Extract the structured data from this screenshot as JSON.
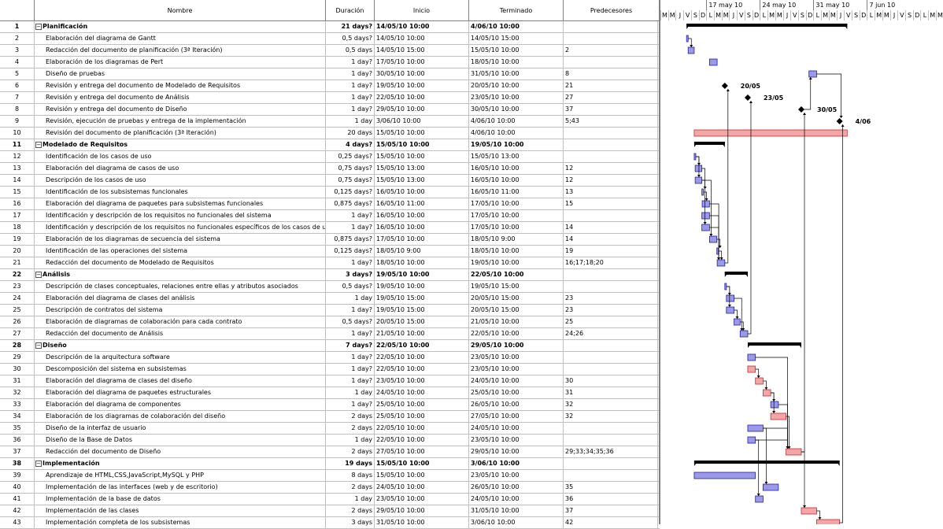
{
  "columns": {
    "id": "",
    "name": "Nombre",
    "duration": "Duración",
    "start": "Inicio",
    "end": "Terminado",
    "pred": "Predecesores"
  },
  "timescale": {
    "weeks": [
      "17 may 10",
      "24 may 10",
      "31 may 10",
      "7 jun 10"
    ],
    "days": [
      "M",
      "M",
      "J",
      "V",
      "S",
      "D",
      "L",
      "M",
      "M",
      "J",
      "V",
      "S",
      "D",
      "L",
      "M",
      "M",
      "J",
      "V",
      "S",
      "D",
      "L",
      "M",
      "M",
      "J",
      "V",
      "S",
      "D",
      "L",
      "M",
      "M",
      "J",
      "V",
      "S",
      "D",
      "L",
      "M",
      "M"
    ]
  },
  "colors": {
    "normal_bar": "#9a9ae8",
    "critical_bar": "#f4a6a6",
    "summary_bar": "#000000",
    "link": "#000000"
  },
  "rows": [
    {
      "id": "1",
      "name": "Planificación",
      "dur": "21 days?",
      "start": "14/05/10 10:00",
      "end": "4/06/10 10:00",
      "pred": "",
      "summary": true,
      "toggle": "−"
    },
    {
      "id": "2",
      "name": "Elaboración del diagrama de Gantt",
      "dur": "0,5 days?",
      "start": "14/05/10 10:00",
      "end": "14/05/10 15:00",
      "pred": ""
    },
    {
      "id": "3",
      "name": "Redacción del documento de planificación (3ª Iteración)",
      "dur": "0,5 days",
      "start": "14/05/10 15:00",
      "end": "15/05/10 10:00",
      "pred": "2"
    },
    {
      "id": "4",
      "name": "Elaboración de los diagramas de Pert",
      "dur": "1 day?",
      "start": "17/05/10 10:00",
      "end": "18/05/10 10:00",
      "pred": ""
    },
    {
      "id": "5",
      "name": "Diseño de pruebas",
      "dur": "1 day?",
      "start": "30/05/10 10:00",
      "end": "31/05/10 10:00",
      "pred": "8"
    },
    {
      "id": "6",
      "name": "Revisión y entrega del documento de Modelado de Requisitos",
      "dur": "1 day?",
      "start": "19/05/10 10:00",
      "end": "20/05/10 10:00",
      "pred": "21"
    },
    {
      "id": "7",
      "name": "Revisión y entrega del documento de Análisis",
      "dur": "1 day?",
      "start": "22/05/10 10:00",
      "end": "23/05/10 10:00",
      "pred": "27"
    },
    {
      "id": "8",
      "name": "Revisión y entrega del documento de Diseño",
      "dur": "1 day?",
      "start": "29/05/10 10:00",
      "end": "30/05/10 10:00",
      "pred": "37"
    },
    {
      "id": "9",
      "name": "Revisión, ejecución de pruebas y entrega de la implementación",
      "dur": "1 day",
      "start": "3/06/10 10:00",
      "end": "4/06/10 10:00",
      "pred": "5;43"
    },
    {
      "id": "10",
      "name": "Revisión del documento de planificación (3ª Iteración)",
      "dur": "20 days",
      "start": "15/05/10 10:00",
      "end": "4/06/10 10:00",
      "pred": ""
    },
    {
      "id": "11",
      "name": "Modelado de Requisitos",
      "dur": "4 days?",
      "start": "15/05/10 10:00",
      "end": "19/05/10 10:00",
      "pred": "",
      "summary": true,
      "toggle": "−"
    },
    {
      "id": "12",
      "name": "Identificación de los casos de uso",
      "dur": "0,25 days?",
      "start": "15/05/10 10:00",
      "end": "15/05/10 13:00",
      "pred": ""
    },
    {
      "id": "13",
      "name": "Elaboración del diagrama de casos de uso",
      "dur": "0,75 days?",
      "start": "15/05/10 13:00",
      "end": "16/05/10 10:00",
      "pred": "12"
    },
    {
      "id": "14",
      "name": "Descripción de los casos de uso",
      "dur": "0,75 days?",
      "start": "15/05/10 13:00",
      "end": "16/05/10 10:00",
      "pred": "12"
    },
    {
      "id": "15",
      "name": "Identificación de los subsistemas funcionales",
      "dur": "0,125 days?",
      "start": "16/05/10 10:00",
      "end": "16/05/10 11:00",
      "pred": "13"
    },
    {
      "id": "16",
      "name": "Elaboración del diagrama de paquetes para subsistemas funcionales",
      "dur": "0,875 days?",
      "start": "16/05/10 11:00",
      "end": "17/05/10 10:00",
      "pred": "15"
    },
    {
      "id": "17",
      "name": "Identificación y descripción de los requisitos no funcionales del sistema",
      "dur": "1 day?",
      "start": "16/05/10 10:00",
      "end": "17/05/10 10:00",
      "pred": ""
    },
    {
      "id": "18",
      "name": "Identificación y descripción de los requisitos no funcionales específicos de los casos de uso",
      "dur": "1 day?",
      "start": "16/05/10 10:00",
      "end": "17/05/10 10:00",
      "pred": "14"
    },
    {
      "id": "19",
      "name": "Elaboración de los diagramas de secuencia del sistema",
      "dur": "0,875 days?",
      "start": "17/05/10 10:00",
      "end": "18/05/10 9:00",
      "pred": "14"
    },
    {
      "id": "20",
      "name": "Identificación de las operaciones del sistema",
      "dur": "0,125 days?",
      "start": "18/05/10 9:00",
      "end": "18/05/10 10:00",
      "pred": "19"
    },
    {
      "id": "21",
      "name": "Redacción del documento de Modelado de Requisitos",
      "dur": "1 day?",
      "start": "18/05/10 10:00",
      "end": "19/05/10 10:00",
      "pred": "16;17;18;20"
    },
    {
      "id": "22",
      "name": "Análisis",
      "dur": "3 days?",
      "start": "19/05/10 10:00",
      "end": "22/05/10 10:00",
      "pred": "",
      "summary": true,
      "toggle": "−"
    },
    {
      "id": "23",
      "name": "Descripción de clases conceptuales, relaciones entre ellas y atributos asociados",
      "dur": "0,5 days?",
      "start": "19/05/10 10:00",
      "end": "19/05/10 15:00",
      "pred": ""
    },
    {
      "id": "24",
      "name": "Elaboración del diagrama de clases del análisis",
      "dur": "1 day",
      "start": "19/05/10 15:00",
      "end": "20/05/10 15:00",
      "pred": "23"
    },
    {
      "id": "25",
      "name": "Descripción de contratos del sistema",
      "dur": "1 day?",
      "start": "19/05/10 15:00",
      "end": "20/05/10 15:00",
      "pred": "23"
    },
    {
      "id": "26",
      "name": "Elaboración de diagramas de colaboración para cada contrato",
      "dur": "0,5 days?",
      "start": "20/05/10 15:00",
      "end": "21/05/10 10:00",
      "pred": "25"
    },
    {
      "id": "27",
      "name": "Redacción del documento de Análisis",
      "dur": "1 day?",
      "start": "21/05/10 10:00",
      "end": "22/05/10 10:00",
      "pred": "24;26"
    },
    {
      "id": "28",
      "name": "Diseño",
      "dur": "7 days?",
      "start": "22/05/10 10:00",
      "end": "29/05/10 10:00",
      "pred": "",
      "summary": true,
      "toggle": "−"
    },
    {
      "id": "29",
      "name": "Descripción de la arquitectura software",
      "dur": "1 day?",
      "start": "22/05/10 10:00",
      "end": "23/05/10 10:00",
      "pred": ""
    },
    {
      "id": "30",
      "name": "Descomposición del sistema en subsistemas",
      "dur": "1 day?",
      "start": "22/05/10 10:00",
      "end": "23/05/10 10:00",
      "pred": ""
    },
    {
      "id": "31",
      "name": "Elaboración del diagrama de clases del diseño",
      "dur": "1 day?",
      "start": "23/05/10 10:00",
      "end": "24/05/10 10:00",
      "pred": "30"
    },
    {
      "id": "32",
      "name": "Elaboración del diagrama de paquetes estructurales",
      "dur": "1 day",
      "start": "24/05/10 10:00",
      "end": "25/05/10 10:00",
      "pred": "31"
    },
    {
      "id": "33",
      "name": "Elaboración del diagrama de componentes",
      "dur": "1 day?",
      "start": "25/05/10 10:00",
      "end": "26/05/10 10:00",
      "pred": "32"
    },
    {
      "id": "34",
      "name": "Elaboración de los diagramas de colaboración del diseño",
      "dur": "2 days",
      "start": "25/05/10 10:00",
      "end": "27/05/10 10:00",
      "pred": "32"
    },
    {
      "id": "35",
      "name": "Diseño de la interfaz de usuario",
      "dur": "2 days",
      "start": "22/05/10 10:00",
      "end": "24/05/10 10:00",
      "pred": ""
    },
    {
      "id": "36",
      "name": "Diseño de la Base de Datos",
      "dur": "1 day",
      "start": "22/05/10 10:00",
      "end": "23/05/10 10:00",
      "pred": ""
    },
    {
      "id": "37",
      "name": "Redacción del documento de Diseño",
      "dur": "2 days",
      "start": "27/05/10 10:00",
      "end": "29/05/10 10:00",
      "pred": "29;33;34;35;36"
    },
    {
      "id": "38",
      "name": "Implementación",
      "dur": "19 days",
      "start": "15/05/10 10:00",
      "end": "3/06/10 10:00",
      "pred": "",
      "summary": true,
      "toggle": "−"
    },
    {
      "id": "39",
      "name": "Aprendizaje de HTML,CSS,JavaScript,MySQL y PHP",
      "dur": "8 days",
      "start": "15/05/10 10:00",
      "end": "23/05/10 10:00",
      "pred": ""
    },
    {
      "id": "40",
      "name": "Implementación de las interfaces (web y de escritorio)",
      "dur": "2 days",
      "start": "24/05/10 10:00",
      "end": "26/05/10 10:00",
      "pred": "35"
    },
    {
      "id": "41",
      "name": "Implementación de la base de datos",
      "dur": "1 day",
      "start": "23/05/10 10:00",
      "end": "24/05/10 10:00",
      "pred": "36"
    },
    {
      "id": "42",
      "name": "Implementación de las clases",
      "dur": "2 days",
      "start": "29/05/10 10:00",
      "end": "31/05/10 10:00",
      "pred": "37"
    },
    {
      "id": "43",
      "name": "Implementación completa de los subsistemas",
      "dur": "3 days",
      "start": "31/05/10 10:00",
      "end": "3/06/10 10:00",
      "pred": "42"
    }
  ],
  "milestone_labels": [
    "20/05",
    "23/05",
    "30/05",
    "4/06"
  ]
}
